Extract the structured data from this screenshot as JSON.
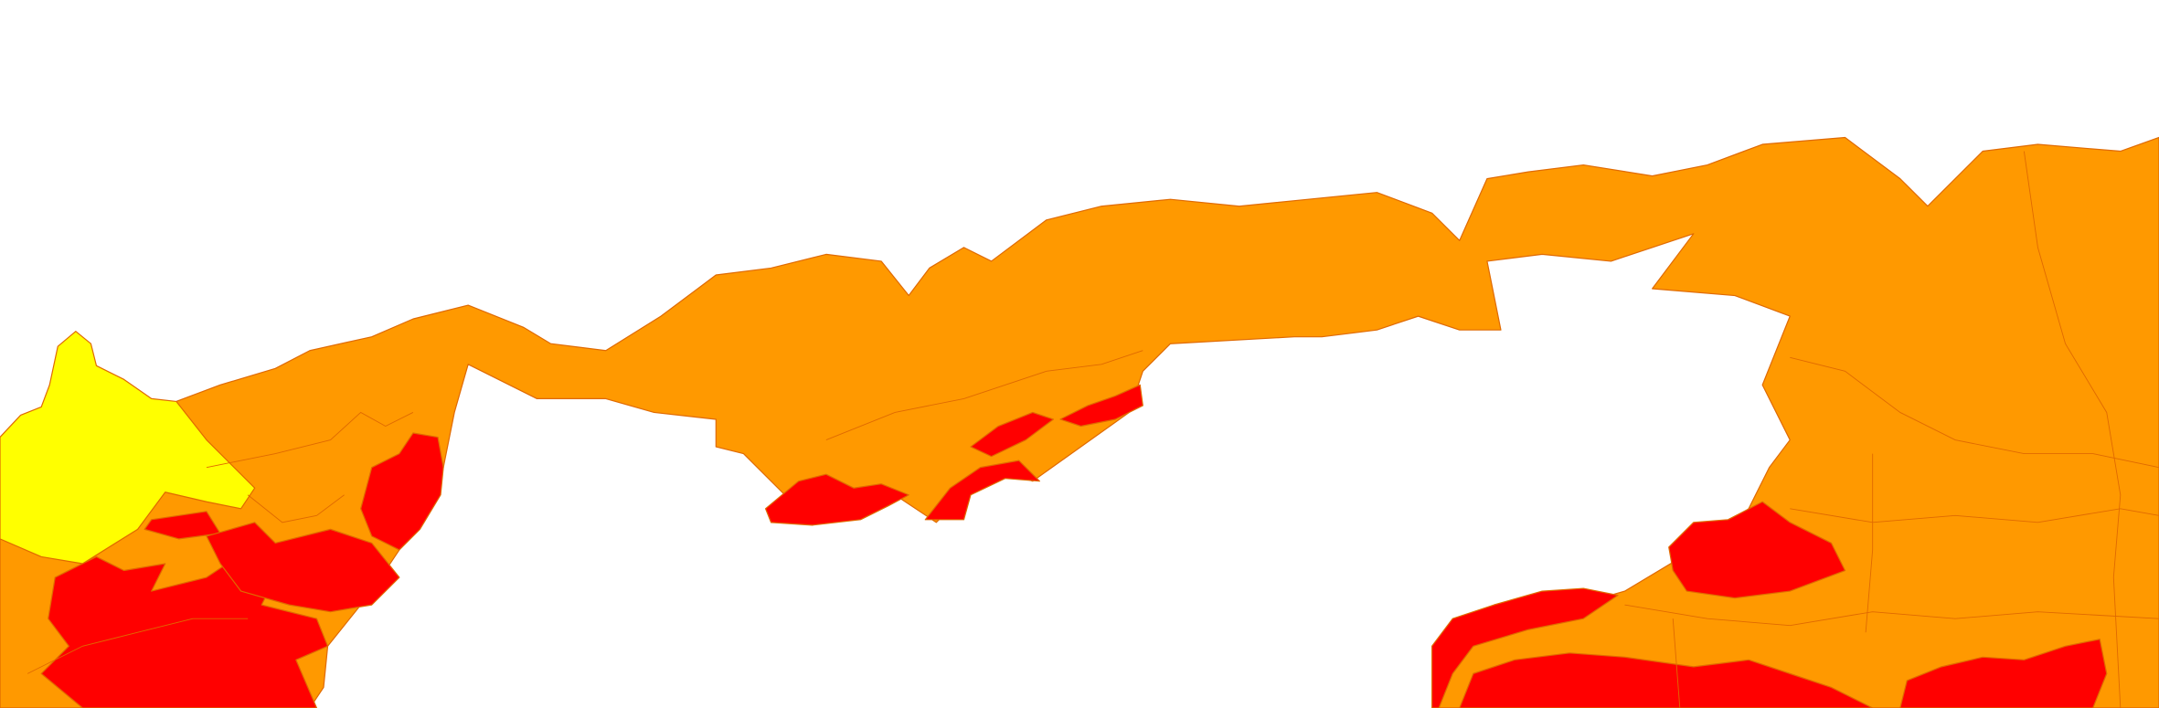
{
  "map": {
    "classes": [
      {
        "id": "moderate",
        "color": "#FF9900"
      },
      {
        "id": "high",
        "color": "#FF0000"
      },
      {
        "id": "low",
        "color": "#FFFF00"
      }
    ],
    "boundary_color": "#E06A00",
    "background_color": "#FFFFFF"
  }
}
